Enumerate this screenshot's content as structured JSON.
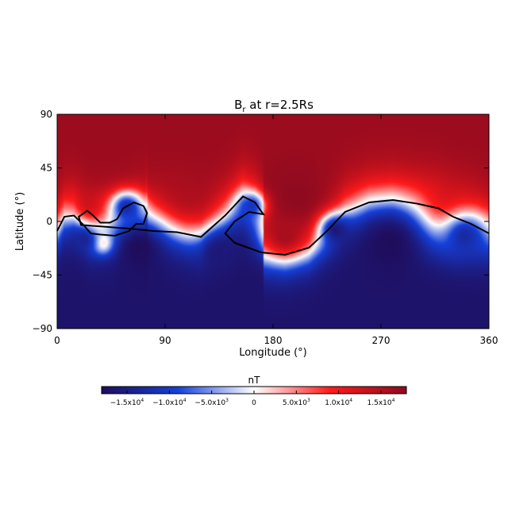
{
  "chart_data": {
    "type": "heatmap",
    "title_main": "B",
    "title_sub": "r",
    "title_rest": " at r=2.5Rs",
    "xlabel": "Longitude (°)",
    "ylabel": "Latitude (°)",
    "xlim": [
      0,
      360
    ],
    "ylim": [
      -90,
      90
    ],
    "x_ticks": [
      0,
      90,
      180,
      270,
      360
    ],
    "x_tick_labels": [
      "0",
      "90",
      "180",
      "270",
      "360"
    ],
    "y_ticks": [
      90,
      45,
      0,
      -45,
      -90
    ],
    "y_tick_labels": [
      "90",
      "45",
      "0",
      "−45",
      "−90"
    ],
    "colorbar": {
      "label": "nT",
      "range": [
        -18000,
        18000
      ],
      "ticks": [
        -15000,
        -10000,
        -5000,
        0,
        5000,
        10000,
        15000
      ],
      "tick_labels": [
        {
          "mant": "−1.5x10",
          "exp": "4"
        },
        {
          "mant": "−1.0x10",
          "exp": "4"
        },
        {
          "mant": "−5.0x10",
          "exp": "3"
        },
        {
          "mant": "0",
          "exp": ""
        },
        {
          "mant": "5.0x10",
          "exp": "3"
        },
        {
          "mant": "1.0x10",
          "exp": "4"
        },
        {
          "mant": "1.5x10",
          "exp": "4"
        }
      ],
      "colors": [
        "#1f0d5c",
        "#1540d8",
        "#ffffff",
        "#ff1a1a",
        "#8e0a1f"
      ]
    },
    "neutral_line": [
      [
        0,
        -8
      ],
      [
        6,
        4
      ],
      [
        14,
        5
      ],
      [
        22,
        -3
      ],
      [
        28,
        -10
      ],
      [
        36,
        -11
      ],
      [
        48,
        -12
      ],
      [
        60,
        -8
      ],
      [
        66,
        -2
      ],
      [
        72,
        -2
      ],
      [
        75,
        7
      ],
      [
        72,
        13
      ],
      [
        64,
        16
      ],
      [
        55,
        11
      ],
      [
        50,
        2
      ],
      [
        44,
        -1
      ],
      [
        36,
        -1
      ],
      [
        30,
        5
      ],
      [
        25,
        9
      ],
      [
        18,
        4
      ],
      [
        20,
        -3
      ],
      [
        34,
        -4
      ],
      [
        60,
        -6
      ],
      [
        80,
        -8
      ],
      [
        100,
        -9
      ],
      [
        120,
        -13
      ],
      [
        140,
        5
      ],
      [
        155,
        21
      ],
      [
        165,
        16
      ],
      [
        172,
        6
      ],
      [
        160,
        8
      ],
      [
        148,
        0
      ],
      [
        140,
        -10
      ],
      [
        148,
        -18
      ],
      [
        170,
        -26
      ],
      [
        190,
        -28
      ],
      [
        210,
        -22
      ],
      [
        225,
        -8
      ],
      [
        240,
        8
      ],
      [
        260,
        16
      ],
      [
        280,
        18
      ],
      [
        300,
        15
      ],
      [
        318,
        11
      ],
      [
        330,
        4
      ],
      [
        345,
        -2
      ],
      [
        360,
        -10
      ]
    ],
    "blobs": [
      {
        "lon": 30,
        "lat": 14,
        "r": 14,
        "value": 14000
      },
      {
        "lon": 40,
        "lat": -18,
        "r": 10,
        "value": 14000
      },
      {
        "lon": 100,
        "lat": 20,
        "r": 26,
        "value": 16000
      },
      {
        "lon": 200,
        "lat": 18,
        "r": 30,
        "value": 18000
      },
      {
        "lon": 190,
        "lat": -12,
        "r": 18,
        "value": 16000
      },
      {
        "lon": 330,
        "lat": 10,
        "r": 30,
        "value": 14000
      },
      {
        "lon": 68,
        "lat": -22,
        "r": 30,
        "value": -18000
      },
      {
        "lon": 135,
        "lat": -25,
        "r": 18,
        "value": -16000
      },
      {
        "lon": 22,
        "lat": -15,
        "r": 12,
        "value": -14000
      },
      {
        "lon": 58,
        "lat": 12,
        "r": 14,
        "value": -13000
      },
      {
        "lon": 162,
        "lat": 13,
        "r": 12,
        "value": -11000
      },
      {
        "lon": 232,
        "lat": -7,
        "r": 14,
        "value": -16000
      },
      {
        "lon": 278,
        "lat": -18,
        "r": 26,
        "value": -18000
      },
      {
        "lon": 340,
        "lat": -12,
        "r": 22,
        "value": -13000
      }
    ]
  }
}
